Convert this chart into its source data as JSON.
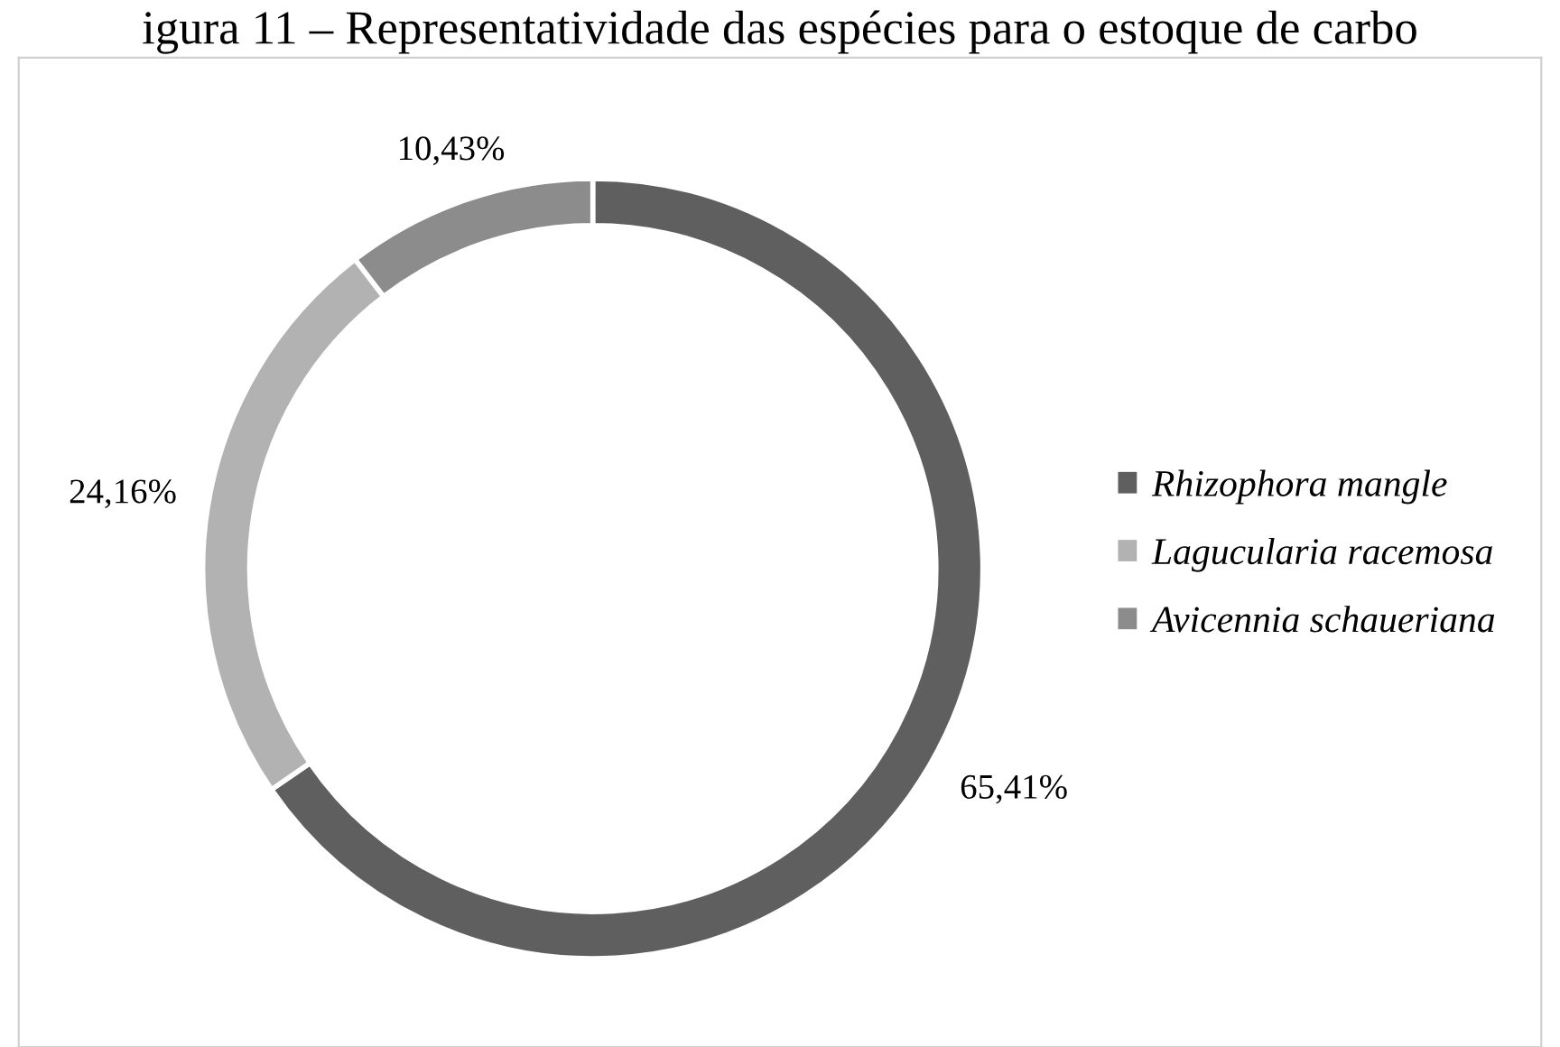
{
  "chart_data": {
    "type": "donut",
    "title": "igura 11 – Representatividade das espécies para o estoque de carbo",
    "categories": [
      "Rhizophora mangle",
      "Lagucularia racemosa",
      "Avicennia schaueriana"
    ],
    "values": [
      65.41,
      24.16,
      10.43
    ],
    "colors": [
      "#5f5f5f",
      "#b2b2b2",
      "#8c8c8c"
    ],
    "value_labels": [
      "65,41%",
      "24,16%",
      "10,43%"
    ],
    "legend": "right"
  }
}
